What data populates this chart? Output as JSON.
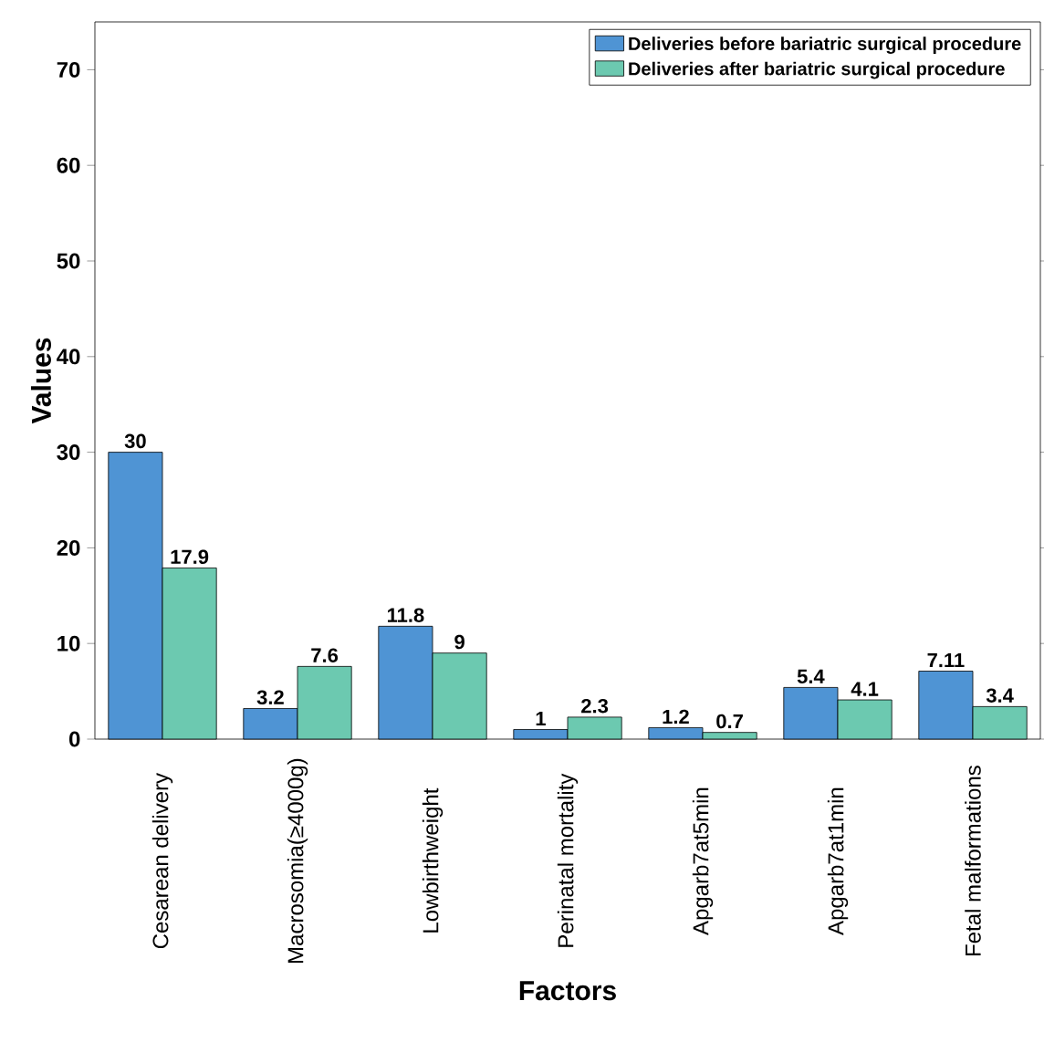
{
  "chart_data": {
    "type": "bar",
    "xlabel": "Factors",
    "ylabel": "Values",
    "categories": [
      "Cesarean delivery",
      "Macrosomia(≥4000g)",
      "Lowbirthweight",
      "Perinatal mortality",
      "Apgarb7at5min",
      "Apgarb7at1min",
      "Fetal malformations"
    ],
    "series": [
      {
        "name": "Deliveries before bariatric surgical procedure",
        "color": "#4f94d4",
        "values": [
          30,
          3.2,
          11.8,
          1,
          1.2,
          5.4,
          7.11
        ]
      },
      {
        "name": "Deliveries after bariatric surgical procedure",
        "color": "#6cc9b0",
        "values": [
          17.9,
          7.6,
          9,
          2.3,
          0.7,
          4.1,
          3.4
        ]
      }
    ],
    "ylim": [
      0,
      75
    ],
    "yticks": [
      0,
      10,
      20,
      30,
      40,
      50,
      60,
      70
    ],
    "data_labels": true,
    "legend": "top right",
    "grid": false
  }
}
